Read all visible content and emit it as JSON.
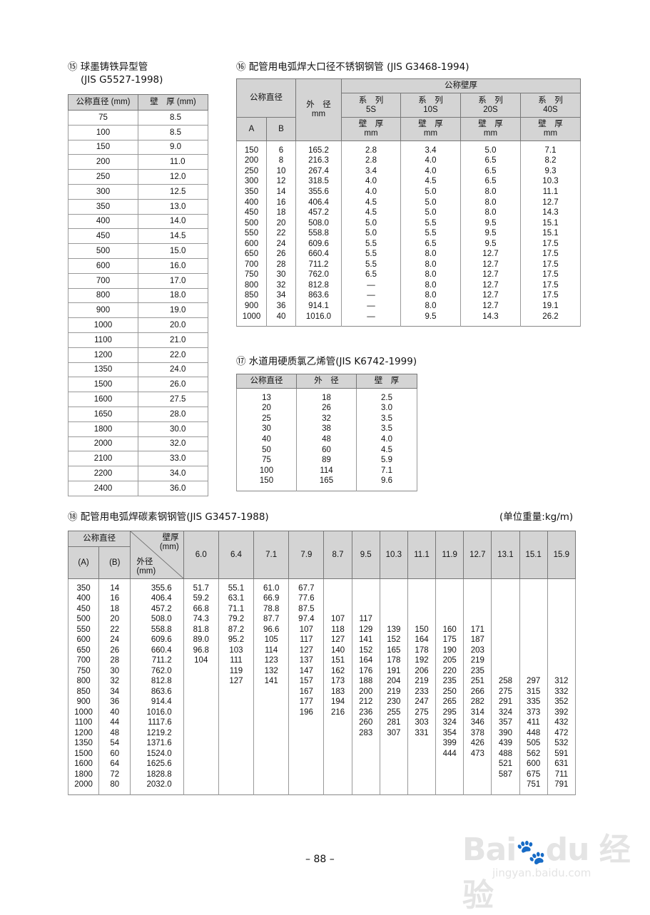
{
  "t15": {
    "title_line1": "⑮ 球墨铸铁异型管",
    "title_line2": "(JIS G5527-1998)",
    "headers": [
      "公称直径 (mm)",
      "壁　厚 (mm)"
    ],
    "rows": [
      [
        "75",
        "8.5"
      ],
      [
        "100",
        "8.5"
      ],
      [
        "150",
        "9.0"
      ],
      [
        "200",
        "11.0"
      ],
      [
        "250",
        "12.0"
      ],
      [
        "300",
        "12.5"
      ],
      [
        "350",
        "13.0"
      ],
      [
        "400",
        "14.0"
      ],
      [
        "450",
        "14.5"
      ],
      [
        "500",
        "15.0"
      ],
      [
        "600",
        "16.0"
      ],
      [
        "700",
        "17.0"
      ],
      [
        "800",
        "18.0"
      ],
      [
        "900",
        "19.0"
      ],
      [
        "1000",
        "20.0"
      ],
      [
        "1100",
        "21.0"
      ],
      [
        "1200",
        "22.0"
      ],
      [
        "1350",
        "24.0"
      ],
      [
        "1500",
        "26.0"
      ],
      [
        "1600",
        "27.5"
      ],
      [
        "1650",
        "28.0"
      ],
      [
        "1800",
        "30.0"
      ],
      [
        "2000",
        "32.0"
      ],
      [
        "2100",
        "33.0"
      ],
      [
        "2200",
        "34.0"
      ],
      [
        "2400",
        "36.0"
      ]
    ]
  },
  "t16": {
    "title": "⑯ 配管用电弧焊大口径不锈钢钢管 (JIS G3468-1994)",
    "h_nominal_dia": "公称直径",
    "h_od": "外　径",
    "h_od_unit": "mm",
    "h_nominal_wall": "公称壁厚",
    "h_a": "A",
    "h_b": "B",
    "series": [
      {
        "label": "系　列",
        "name": "5S"
      },
      {
        "label": "系　列",
        "name": "10S"
      },
      {
        "label": "系　列",
        "name": "20S"
      },
      {
        "label": "系　列",
        "name": "40S"
      }
    ],
    "wall_label": "壁　厚",
    "wall_unit": "mm",
    "rows": [
      [
        "150",
        "6",
        "165.2",
        "2.8",
        "3.4",
        "5.0",
        "7.1"
      ],
      [
        "200",
        "8",
        "216.3",
        "2.8",
        "4.0",
        "6.5",
        "8.2"
      ],
      [
        "250",
        "10",
        "267.4",
        "3.4",
        "4.0",
        "6.5",
        "9.3"
      ],
      [
        "300",
        "12",
        "318.5",
        "4.0",
        "4.5",
        "6.5",
        "10.3"
      ],
      [
        "350",
        "14",
        "355.6",
        "4.0",
        "5.0",
        "8.0",
        "11.1"
      ],
      [
        "400",
        "16",
        "406.4",
        "4.5",
        "5.0",
        "8.0",
        "12.7"
      ],
      [
        "450",
        "18",
        "457.2",
        "4.5",
        "5.0",
        "8.0",
        "14.3"
      ],
      [
        "500",
        "20",
        "508.0",
        "5.0",
        "5.5",
        "9.5",
        "15.1"
      ],
      [
        "550",
        "22",
        "558.8",
        "5.0",
        "5.5",
        "9.5",
        "15.1"
      ],
      [
        "600",
        "24",
        "609.6",
        "5.5",
        "6.5",
        "9.5",
        "17.5"
      ],
      [
        "650",
        "26",
        "660.4",
        "5.5",
        "8.0",
        "12.7",
        "17.5"
      ],
      [
        "700",
        "28",
        "711.2",
        "5.5",
        "8.0",
        "12.7",
        "17.5"
      ],
      [
        "750",
        "30",
        "762.0",
        "6.5",
        "8.0",
        "12.7",
        "17.5"
      ],
      [
        "800",
        "32",
        "812.8",
        "—",
        "8.0",
        "12.7",
        "17.5"
      ],
      [
        "850",
        "34",
        "863.6",
        "—",
        "8.0",
        "12.7",
        "17.5"
      ],
      [
        "900",
        "36",
        "914.1",
        "—",
        "8.0",
        "12.7",
        "19.1"
      ],
      [
        "1000",
        "40",
        "1016.0",
        "—",
        "9.5",
        "14.3",
        "26.2"
      ]
    ]
  },
  "t17": {
    "title": "⑰ 水道用硬质氯乙烯管(JIS K6742-1999)",
    "headers": [
      "公称直径",
      "外　径",
      "壁　厚"
    ],
    "rows": [
      [
        "13",
        "18",
        "2.5"
      ],
      [
        "20",
        "26",
        "3.0"
      ],
      [
        "25",
        "32",
        "3.5"
      ],
      [
        "30",
        "38",
        "3.5"
      ],
      [
        "40",
        "48",
        "4.0"
      ],
      [
        "50",
        "60",
        "4.5"
      ],
      [
        "75",
        "89",
        "5.9"
      ],
      [
        "100",
        "114",
        "7.1"
      ],
      [
        "150",
        "165",
        "9.6"
      ]
    ]
  },
  "t18": {
    "title": "⑱ 配管用电弧焊碳素钢钢管(JIS G3457-1988)",
    "unit_note": "(单位重量:kg/m)",
    "h_nominal_dia": "公称直径",
    "h_a": "(A)",
    "h_b": "(B)",
    "h_wall": "壁厚",
    "h_wall_unit": "(mm)",
    "h_od": "外径",
    "h_od_unit": "(mm)",
    "wall_thicknesses": [
      "6.0",
      "6.4",
      "7.1",
      "7.9",
      "8.7",
      "9.5",
      "10.3",
      "11.1",
      "11.9",
      "12.7",
      "13.1",
      "15.1",
      "15.9"
    ],
    "a": [
      "350",
      "400",
      "450",
      "500",
      "550",
      "600",
      "650",
      "700",
      "750",
      "800",
      "850",
      "900",
      "1000",
      "1100",
      "1200",
      "1350",
      "1500",
      "1600",
      "1800",
      "2000"
    ],
    "b": [
      "14",
      "16",
      "18",
      "20",
      "22",
      "24",
      "26",
      "28",
      "30",
      "32",
      "34",
      "36",
      "40",
      "44",
      "48",
      "54",
      "60",
      "64",
      "72",
      "80"
    ],
    "od": [
      "355.6",
      "406.4",
      "457.2",
      "508.0",
      "558.8",
      "609.6",
      "660.4",
      "711.2",
      "762.0",
      "812.8",
      "863.6",
      "914.4",
      "1016.0",
      "1117.6",
      "1219.2",
      "1371.6",
      "1524.0",
      "1625.6",
      "1828.8",
      "2032.0"
    ],
    "weights": [
      [
        "51.7",
        "59.2",
        "66.8",
        "74.3",
        "81.8",
        "89.0",
        "96.8",
        "104",
        "",
        "",
        "",
        "",
        "",
        "",
        "",
        "",
        "",
        "",
        "",
        ""
      ],
      [
        "55.1",
        "63.1",
        "71.1",
        "79.2",
        "87.2",
        "95.2",
        "103",
        "111",
        "119",
        "127",
        "",
        "",
        "",
        "",
        "",
        "",
        "",
        "",
        "",
        ""
      ],
      [
        "61.0",
        "66.9",
        "78.8",
        "87.7",
        "96.6",
        "105",
        "114",
        "123",
        "132",
        "141",
        "",
        "",
        "",
        "",
        "",
        "",
        "",
        "",
        "",
        ""
      ],
      [
        "67.7",
        "77.6",
        "87.5",
        "97.4",
        "107",
        "117",
        "127",
        "137",
        "147",
        "157",
        "167",
        "177",
        "196",
        "",
        "",
        "",
        "",
        "",
        "",
        ""
      ],
      [
        "",
        "",
        "",
        "107",
        "118",
        "127",
        "140",
        "151",
        "162",
        "173",
        "183",
        "194",
        "216",
        "",
        "",
        "",
        "",
        "",
        "",
        ""
      ],
      [
        "",
        "",
        "",
        "117",
        "129",
        "141",
        "152",
        "164",
        "176",
        "188",
        "200",
        "212",
        "236",
        "260",
        "283",
        "",
        "",
        "",
        "",
        ""
      ],
      [
        "",
        "",
        "",
        "",
        "139",
        "152",
        "165",
        "178",
        "191",
        "204",
        "219",
        "230",
        "255",
        "281",
        "307",
        "",
        "",
        "",
        "",
        ""
      ],
      [
        "",
        "",
        "",
        "",
        "150",
        "164",
        "178",
        "192",
        "206",
        "219",
        "233",
        "247",
        "275",
        "303",
        "331",
        "",
        "",
        "",
        "",
        ""
      ],
      [
        "",
        "",
        "",
        "",
        "160",
        "175",
        "190",
        "205",
        "220",
        "235",
        "250",
        "265",
        "295",
        "324",
        "354",
        "399",
        "444",
        "",
        "",
        ""
      ],
      [
        "",
        "",
        "",
        "",
        "171",
        "187",
        "203",
        "219",
        "235",
        "251",
        "266",
        "282",
        "314",
        "346",
        "378",
        "426",
        "473",
        "",
        "",
        ""
      ],
      [
        "",
        "",
        "",
        "",
        "",
        "",
        "",
        "",
        "",
        "258",
        "275",
        "291",
        "324",
        "357",
        "390",
        "439",
        "488",
        "521",
        "587",
        ""
      ],
      [
        "",
        "",
        "",
        "",
        "",
        "",
        "",
        "",
        "",
        "297",
        "315",
        "335",
        "373",
        "411",
        "448",
        "505",
        "562",
        "600",
        "675",
        "751"
      ],
      [
        "",
        "",
        "",
        "",
        "",
        "",
        "",
        "",
        "",
        "312",
        "332",
        "352",
        "392",
        "432",
        "472",
        "532",
        "591",
        "631",
        "711",
        "791"
      ]
    ]
  },
  "page_number": "– 88 –",
  "watermark": {
    "logo": "Baidu 经验",
    "url": "jingyan.baidu.com"
  },
  "colors": {
    "header_bg": "#d4d4d4",
    "border": "#888888"
  }
}
